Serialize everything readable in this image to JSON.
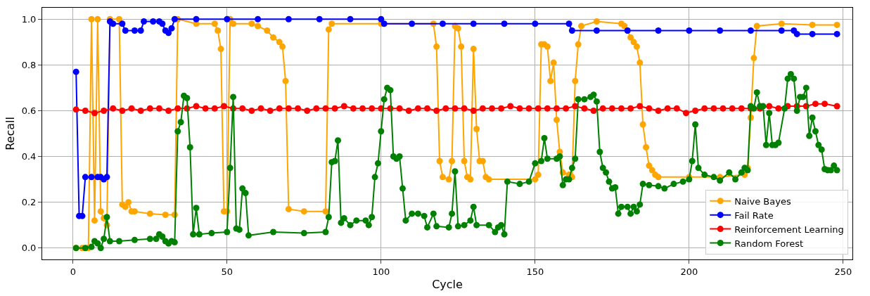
{
  "chart_data": {
    "type": "line",
    "xlabel": "Cycle",
    "ylabel": "Recall",
    "xlim": [
      -10,
      253
    ],
    "ylim": [
      -0.05,
      1.05
    ],
    "xticks": [
      0,
      50,
      100,
      150,
      200,
      250
    ],
    "yticks": [
      {
        "value": 0,
        "label": "0.0"
      },
      0.2,
      0.4,
      0.6,
      0.8,
      {
        "value": 1,
        "label": "1.0"
      }
    ],
    "grid": true,
    "legend": "bottom right",
    "marker": "circle",
    "line_style": "solid",
    "series": [
      {
        "name": "Naive Bayes",
        "color": "#ffa500",
        "x": [
          1,
          3,
          5,
          6,
          7,
          8,
          9,
          10,
          11,
          12,
          15,
          16,
          17,
          18,
          19,
          20,
          25,
          30,
          33,
          34,
          40,
          46,
          47,
          48,
          49,
          50,
          51,
          52,
          58,
          60,
          63,
          65,
          67,
          68,
          69,
          70,
          75,
          82,
          83,
          84,
          100,
          117,
          118,
          119,
          120,
          122,
          123,
          124,
          125,
          126,
          127,
          128,
          129,
          130,
          131,
          132,
          133,
          134,
          135,
          150,
          151,
          152,
          153,
          154,
          155,
          156,
          157,
          158,
          159,
          161,
          162,
          163,
          164,
          165,
          170,
          178,
          179,
          180,
          181,
          182,
          183,
          184,
          185,
          186,
          187,
          188,
          189,
          190,
          200,
          210,
          218,
          219,
          220,
          221,
          222,
          230,
          240,
          248
        ],
        "values": [
          0.0,
          0.0,
          0.0,
          1.0,
          0.12,
          1.0,
          0.16,
          0.13,
          0.1,
          1.0,
          1.0,
          0.19,
          0.18,
          0.2,
          0.16,
          0.16,
          0.15,
          0.145,
          0.145,
          1.0,
          0.98,
          0.98,
          0.95,
          0.87,
          0.16,
          0.16,
          1.0,
          0.98,
          0.98,
          0.97,
          0.95,
          0.92,
          0.9,
          0.88,
          0.73,
          0.17,
          0.16,
          0.16,
          0.955,
          0.98,
          0.98,
          0.98,
          0.88,
          0.38,
          0.31,
          0.3,
          0.38,
          0.97,
          0.96,
          0.88,
          0.38,
          0.31,
          0.3,
          0.87,
          0.52,
          0.38,
          0.38,
          0.31,
          0.3,
          0.3,
          0.32,
          0.89,
          0.89,
          0.88,
          0.73,
          0.81,
          0.56,
          0.42,
          0.33,
          0.32,
          0.31,
          0.73,
          0.89,
          0.97,
          0.99,
          0.98,
          0.97,
          0.95,
          0.92,
          0.9,
          0.88,
          0.81,
          0.54,
          0.44,
          0.36,
          0.34,
          0.32,
          0.31,
          0.31,
          0.31,
          0.32,
          0.35,
          0.57,
          0.83,
          0.97,
          0.98,
          0.975,
          0.975
        ]
      },
      {
        "name": "Fail Rate",
        "color": "#0000ff",
        "x": [
          1,
          2,
          3,
          4,
          6,
          8,
          9,
          10,
          11,
          12,
          13,
          16,
          17,
          20,
          22,
          23,
          26,
          28,
          29,
          30,
          31,
          32,
          33,
          40,
          50,
          60,
          70,
          80,
          90,
          100,
          101,
          110,
          120,
          130,
          140,
          150,
          161,
          162,
          170,
          180,
          190,
          200,
          210,
          220,
          230,
          234,
          235,
          240,
          248
        ],
        "values": [
          0.77,
          0.14,
          0.14,
          0.31,
          0.31,
          0.31,
          0.31,
          0.3,
          0.31,
          0.99,
          0.98,
          0.98,
          0.95,
          0.95,
          0.95,
          0.99,
          0.99,
          0.99,
          0.98,
          0.95,
          0.94,
          0.96,
          1.0,
          1.0,
          1.0,
          1.0,
          1.0,
          1.0,
          1.0,
          1.0,
          0.98,
          0.98,
          0.98,
          0.98,
          0.98,
          0.98,
          0.98,
          0.95,
          0.95,
          0.95,
          0.95,
          0.95,
          0.95,
          0.95,
          0.95,
          0.95,
          0.935,
          0.935,
          0.935
        ]
      },
      {
        "name": "Reinforcement Learning",
        "color": "#ff0000",
        "x": [
          1,
          4,
          7,
          10,
          13,
          16,
          19,
          22,
          25,
          28,
          31,
          34,
          37,
          40,
          43,
          46,
          49,
          52,
          55,
          58,
          61,
          64,
          67,
          70,
          73,
          76,
          79,
          82,
          85,
          88,
          91,
          94,
          97,
          100,
          103,
          106,
          109,
          112,
          115,
          118,
          121,
          124,
          127,
          130,
          133,
          136,
          139,
          142,
          145,
          148,
          151,
          154,
          157,
          160,
          163,
          166,
          169,
          172,
          175,
          178,
          181,
          184,
          187,
          190,
          193,
          196,
          199,
          202,
          205,
          208,
          211,
          214,
          217,
          220,
          223,
          226,
          229,
          232,
          235,
          238,
          241,
          244,
          248
        ],
        "values": [
          0.605,
          0.6,
          0.59,
          0.6,
          0.61,
          0.6,
          0.61,
          0.6,
          0.61,
          0.61,
          0.6,
          0.61,
          0.61,
          0.62,
          0.61,
          0.61,
          0.62,
          0.61,
          0.61,
          0.6,
          0.61,
          0.6,
          0.61,
          0.61,
          0.61,
          0.6,
          0.61,
          0.61,
          0.61,
          0.62,
          0.61,
          0.61,
          0.61,
          0.61,
          0.61,
          0.61,
          0.6,
          0.61,
          0.61,
          0.6,
          0.61,
          0.61,
          0.61,
          0.6,
          0.61,
          0.61,
          0.61,
          0.62,
          0.61,
          0.61,
          0.61,
          0.61,
          0.61,
          0.61,
          0.62,
          0.61,
          0.6,
          0.61,
          0.61,
          0.61,
          0.61,
          0.62,
          0.61,
          0.6,
          0.61,
          0.61,
          0.59,
          0.6,
          0.61,
          0.61,
          0.61,
          0.61,
          0.61,
          0.61,
          0.61,
          0.62,
          0.61,
          0.62,
          0.62,
          0.62,
          0.63,
          0.63,
          0.62
        ]
      },
      {
        "name": "Random Forest",
        "color": "#008000",
        "x": [
          1,
          4,
          6,
          7,
          8,
          9,
          10,
          11,
          12,
          15,
          20,
          25,
          27,
          28,
          29,
          30,
          31,
          32,
          33,
          34,
          35,
          36,
          37,
          38,
          39,
          40,
          41,
          45,
          50,
          51,
          52,
          53,
          54,
          55,
          56,
          57,
          65,
          75,
          82,
          83,
          84,
          85,
          86,
          87,
          88,
          90,
          92,
          95,
          96,
          97,
          98,
          99,
          100,
          101,
          102,
          103,
          104,
          105,
          106,
          107,
          108,
          110,
          112,
          114,
          115,
          117,
          118,
          122,
          123,
          124,
          125,
          127,
          129,
          130,
          131,
          135,
          137,
          138,
          139,
          140,
          141,
          145,
          148,
          150,
          152,
          153,
          154,
          157,
          158,
          159,
          160,
          161,
          162,
          163,
          164,
          166,
          168,
          169,
          170,
          171,
          172,
          173,
          174,
          175,
          176,
          177,
          178,
          180,
          181,
          182,
          183,
          184,
          185,
          187,
          190,
          192,
          195,
          198,
          200,
          201,
          202,
          203,
          205,
          208,
          210,
          213,
          215,
          217,
          218,
          219,
          220,
          221,
          222,
          223,
          224,
          225,
          226,
          227,
          228,
          229,
          231,
          232,
          233,
          234,
          235,
          236,
          237,
          238,
          239,
          240,
          241,
          242,
          243,
          244,
          245,
          246,
          247,
          248
        ],
        "values": [
          0.0,
          0.0,
          0.005,
          0.03,
          0.02,
          0.0,
          0.04,
          0.135,
          0.03,
          0.03,
          0.035,
          0.04,
          0.04,
          0.06,
          0.05,
          0.03,
          0.02,
          0.03,
          0.025,
          0.51,
          0.55,
          0.665,
          0.655,
          0.44,
          0.06,
          0.175,
          0.06,
          0.065,
          0.07,
          0.35,
          0.66,
          0.085,
          0.08,
          0.26,
          0.24,
          0.055,
          0.07,
          0.065,
          0.07,
          0.135,
          0.375,
          0.38,
          0.47,
          0.11,
          0.13,
          0.1,
          0.12,
          0.12,
          0.1,
          0.135,
          0.31,
          0.37,
          0.51,
          0.65,
          0.7,
          0.69,
          0.4,
          0.39,
          0.4,
          0.26,
          0.12,
          0.15,
          0.15,
          0.14,
          0.09,
          0.15,
          0.095,
          0.09,
          0.15,
          0.335,
          0.095,
          0.1,
          0.12,
          0.18,
          0.1,
          0.1,
          0.07,
          0.09,
          0.1,
          0.06,
          0.29,
          0.28,
          0.29,
          0.37,
          0.38,
          0.48,
          0.39,
          0.39,
          0.4,
          0.275,
          0.3,
          0.3,
          0.35,
          0.39,
          0.65,
          0.65,
          0.66,
          0.67,
          0.64,
          0.42,
          0.35,
          0.33,
          0.29,
          0.26,
          0.265,
          0.15,
          0.18,
          0.18,
          0.15,
          0.18,
          0.16,
          0.19,
          0.28,
          0.275,
          0.27,
          0.26,
          0.28,
          0.29,
          0.3,
          0.38,
          0.54,
          0.35,
          0.32,
          0.31,
          0.295,
          0.33,
          0.3,
          0.33,
          0.35,
          0.34,
          0.62,
          0.61,
          0.68,
          0.62,
          0.62,
          0.45,
          0.59,
          0.45,
          0.45,
          0.46,
          0.61,
          0.74,
          0.76,
          0.74,
          0.6,
          0.66,
          0.66,
          0.7,
          0.49,
          0.57,
          0.51,
          0.45,
          0.43,
          0.345,
          0.34,
          0.34,
          0.36,
          0.34
        ]
      }
    ]
  }
}
